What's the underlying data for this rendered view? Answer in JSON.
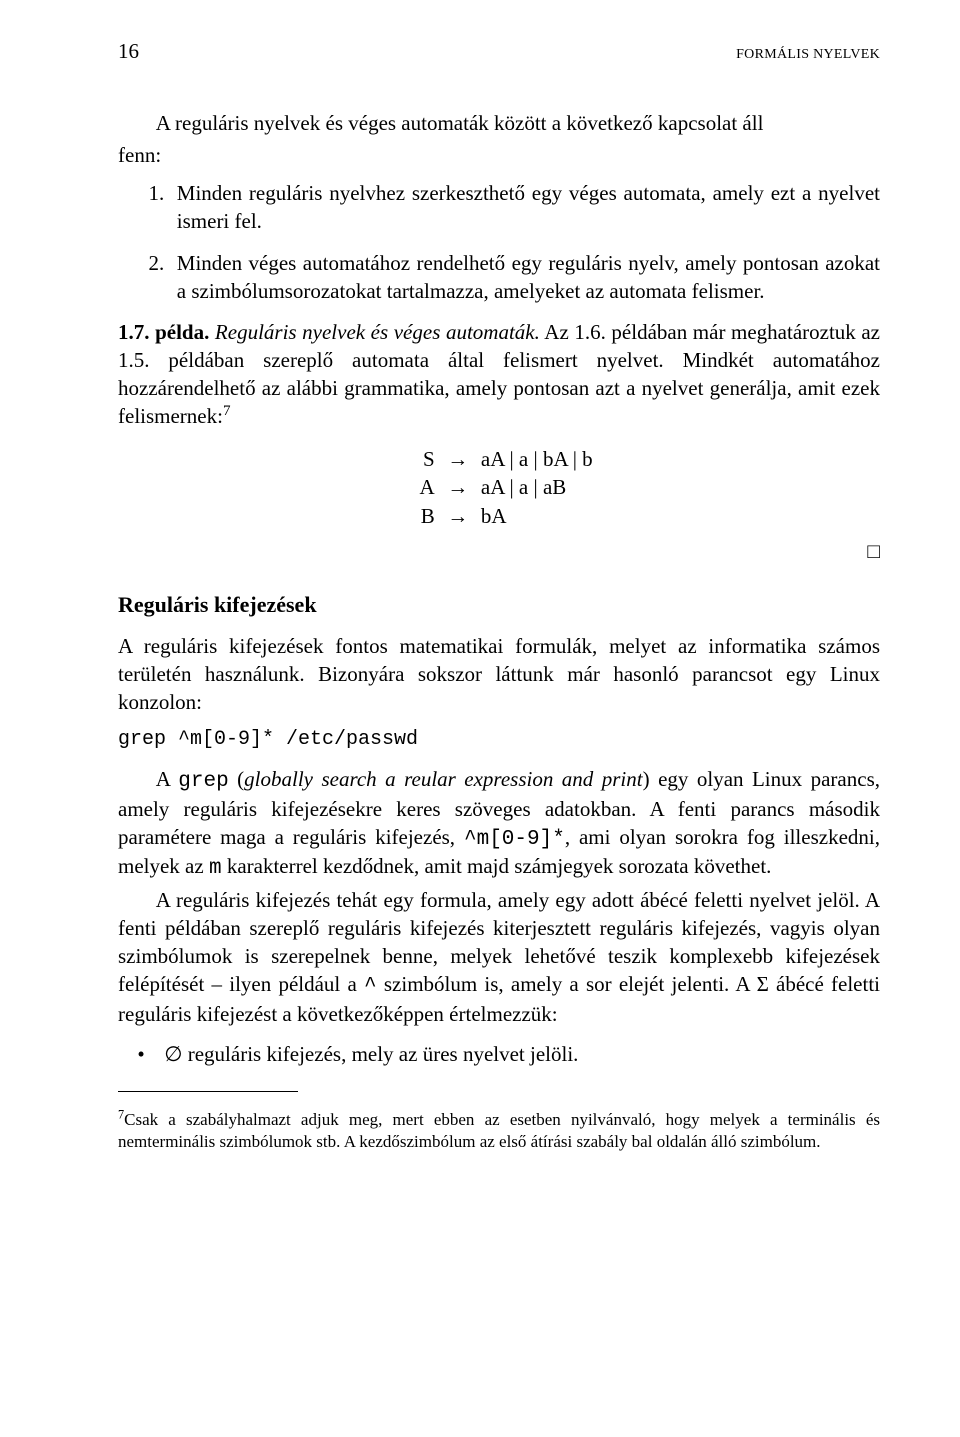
{
  "header": {
    "page_number": "16",
    "running_head": "FORMÁLIS NYELVEK"
  },
  "intro": {
    "pre": "A reguláris nyelvek és véges automaták között a következő kapcsolat áll",
    "post": "fenn:"
  },
  "list": [
    {
      "num": "1.",
      "text": "Minden reguláris nyelvhez szerkeszthető egy véges automata, amely ezt a nyelvet ismeri fel."
    },
    {
      "num": "2.",
      "text": "Minden véges automatához rendelhető egy reguláris nyelv, amely pontosan azokat a szimbólumsorozatokat tartalmazza, amelyeket az automata felismer."
    }
  ],
  "example": {
    "label": "1.7. példa.",
    "title": "Reguláris nyelvek és véges automaták.",
    "body_a": " Az 1.6. példában már meghatároztuk az 1.5. példában szereplő automata által felismert nyelvet. Mindkét automatához hozzárendelhető az alábbi grammatika, amely pontosan azt a nyelvet generálja, amit ezek felismernek:",
    "sup": "7"
  },
  "grammar": [
    {
      "lhs": "S",
      "arrow": "→",
      "rhs": "aA | a | bA | b"
    },
    {
      "lhs": "A",
      "arrow": "→",
      "rhs": "aA | a | aB"
    },
    {
      "lhs": "B",
      "arrow": "→",
      "rhs": "bA"
    }
  ],
  "qed": "□",
  "subheading": "Reguláris kifejezések",
  "regex_para1_a": "A reguláris kifejezések fontos matematikai formulák, melyet az informatika számos területén használunk. Bizonyára sokszor láttunk már hasonló parancsot egy Linux konzolon:",
  "code": "grep ^m[0-9]* /etc/passwd",
  "regex_para2_pre": "A ",
  "regex_para2_grep": "grep",
  "regex_para2_paren": " (",
  "regex_para2_it": "globally search a reular expression and print",
  "regex_para2_mid": ") egy olyan Linux parancs, amely reguláris kifejezésekre keres szöveges adatokban. A fenti parancs második paramétere maga a reguláris kifejezés, ",
  "regex_para2_expr": "^m[0-9]*",
  "regex_para2_mid2": ", ami olyan sorokra fog illeszkedni, melyek az ",
  "regex_para2_m": "m",
  "regex_para2_tail": " karakterrel kezdődnek, amit majd számjegyek sorozata követhet.",
  "regex_para3_a": "A reguláris kifejezés tehát egy formula, amely egy adott ábécé feletti nyelvet jelöl. A fenti példában szereplő reguláris kifejezés kiterjesztett reguláris kifejezés, vagyis olyan szimbólumok is szerepelnek benne, melyek lehetővé teszik komplexebb kifejezések felépítését – ilyen például a ",
  "regex_para3_caret": "^",
  "regex_para3_b": " szimbólum is, amely a sor elejét jelenti. A Σ ábécé feletti reguláris kifejezést a következőképpen értelmezzük:",
  "bullet": {
    "mark": "•",
    "empty": "∅",
    "text": " reguláris kifejezés, mely az üres nyelvet jelöli."
  },
  "footnote": {
    "sup": "7",
    "text": "Csak a szabályhalmazt adjuk meg, mert ebben az esetben nyilvánvaló, hogy melyek a terminális és nemterminális szimbólumok stb. A kezdőszimbólum az első átírási szabály bal oldalán álló szimbólum."
  }
}
